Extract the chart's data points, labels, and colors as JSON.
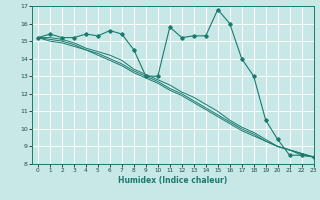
{
  "xlabel": "Humidex (Indice chaleur)",
  "ylabel": "",
  "bg_color": "#c8e8e8",
  "grid_color": "#ffffff",
  "line_color": "#1a7a6e",
  "xlim": [
    -0.5,
    23
  ],
  "ylim": [
    8,
    17
  ],
  "xticks": [
    0,
    1,
    2,
    3,
    4,
    5,
    6,
    7,
    8,
    9,
    10,
    11,
    12,
    13,
    14,
    15,
    16,
    17,
    18,
    19,
    20,
    21,
    22,
    23
  ],
  "yticks": [
    8,
    9,
    10,
    11,
    12,
    13,
    14,
    15,
    16,
    17
  ],
  "series": {
    "line1": {
      "x": [
        0,
        1,
        2,
        3,
        4,
        5,
        6,
        7,
        8,
        9,
        10,
        11,
        12,
        13,
        14,
        15,
        16,
        17,
        18,
        19,
        20,
        21,
        22,
        23
      ],
      "y": [
        15.2,
        15.4,
        15.2,
        15.2,
        15.4,
        15.3,
        15.6,
        15.4,
        14.5,
        13.0,
        13.0,
        15.8,
        15.2,
        15.3,
        15.3,
        16.8,
        16.0,
        14.0,
        13.0,
        10.5,
        9.4,
        8.5,
        8.5,
        8.4
      ]
    },
    "line2": {
      "x": [
        0,
        1,
        2,
        3,
        4,
        5,
        6,
        7,
        8,
        9,
        10,
        11,
        12,
        13,
        14,
        15,
        16,
        17,
        18,
        19,
        20,
        21,
        22,
        23
      ],
      "y": [
        15.2,
        15.2,
        15.1,
        14.9,
        14.6,
        14.4,
        14.2,
        13.9,
        13.4,
        13.1,
        12.8,
        12.5,
        12.1,
        11.8,
        11.4,
        11.0,
        10.5,
        10.1,
        9.8,
        9.4,
        9.0,
        8.8,
        8.6,
        8.4
      ]
    },
    "line3": {
      "x": [
        0,
        1,
        2,
        3,
        4,
        5,
        6,
        7,
        8,
        9,
        10,
        11,
        12,
        13,
        14,
        15,
        16,
        17,
        18,
        19,
        20,
        21,
        22,
        23
      ],
      "y": [
        15.2,
        15.1,
        15.0,
        14.8,
        14.5,
        14.3,
        14.0,
        13.7,
        13.3,
        13.0,
        12.7,
        12.3,
        12.0,
        11.6,
        11.2,
        10.8,
        10.4,
        10.0,
        9.7,
        9.3,
        9.0,
        8.8,
        8.6,
        8.4
      ]
    },
    "line4": {
      "x": [
        0,
        1,
        2,
        3,
        4,
        5,
        6,
        7,
        8,
        9,
        10,
        11,
        12,
        13,
        14,
        15,
        16,
        17,
        18,
        19,
        20,
        21,
        22,
        23
      ],
      "y": [
        15.2,
        15.0,
        14.9,
        14.7,
        14.5,
        14.2,
        13.9,
        13.6,
        13.2,
        12.9,
        12.6,
        12.2,
        11.9,
        11.5,
        11.1,
        10.7,
        10.3,
        9.9,
        9.6,
        9.3,
        9.0,
        8.8,
        8.5,
        8.4
      ]
    }
  }
}
